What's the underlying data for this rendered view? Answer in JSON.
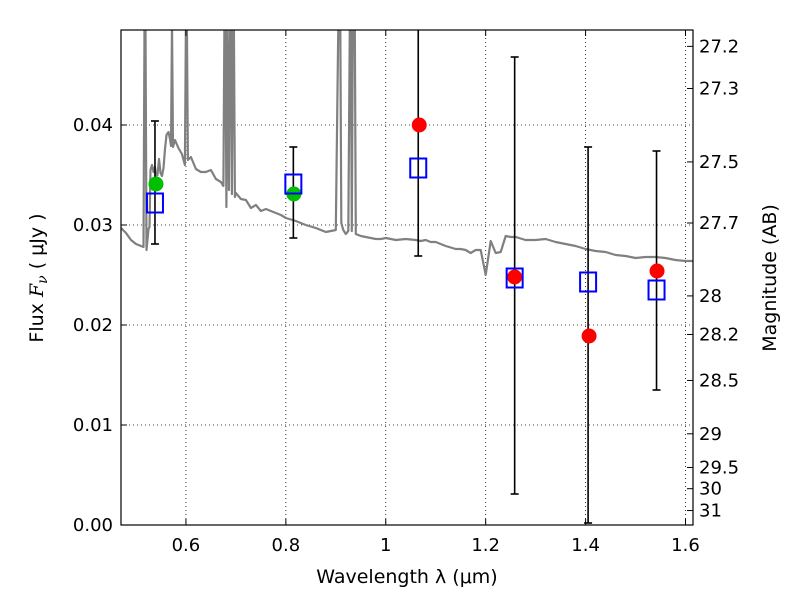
{
  "chart_data": {
    "type": "scatter",
    "xlabel": "Wavelength  λ (μm)",
    "ylabel_prefix": "Flux  ",
    "ylabel_symbol": "F",
    "ylabel_subscript": "ν",
    "ylabel_units": "  ( μJy )",
    "y2label": "Magnitude (AB)",
    "xlim": [
      0.47,
      1.615
    ],
    "ylim": [
      0.0,
      0.0495
    ],
    "grid": true,
    "xticks": [
      {
        "value": 0.6,
        "label": "0.6"
      },
      {
        "value": 0.8,
        "label": "0.8"
      },
      {
        "value": 1.0,
        "label": "1"
      },
      {
        "value": 1.2,
        "label": "1.2"
      },
      {
        "value": 1.4,
        "label": "1.4"
      },
      {
        "value": 1.6,
        "label": "1.6"
      }
    ],
    "yticks": [
      {
        "value": 0.0,
        "label": "0.00"
      },
      {
        "value": 0.01,
        "label": "0.01"
      },
      {
        "value": 0.02,
        "label": "0.02"
      },
      {
        "value": 0.03,
        "label": "0.03"
      },
      {
        "value": 0.04,
        "label": "0.04"
      }
    ],
    "magnitude_ticks": [
      {
        "mag": 27.2,
        "label": "27.2"
      },
      {
        "mag": 27.3,
        "label": "27.3"
      },
      {
        "mag": 27.5,
        "label": "27.5"
      },
      {
        "mag": 27.7,
        "label": "27.7"
      },
      {
        "mag": 28.0,
        "label": "28"
      },
      {
        "mag": 28.2,
        "label": "28.2"
      },
      {
        "mag": 28.5,
        "label": "28.5"
      },
      {
        "mag": 29.0,
        "label": "29"
      },
      {
        "mag": 29.5,
        "label": "29.5"
      },
      {
        "mag": 30.0,
        "label": "30"
      },
      {
        "mag": 31.0,
        "label": "31"
      }
    ],
    "series": [
      {
        "name": "model-spectrum",
        "kind": "line",
        "color": "#808080",
        "x": [
          0.47,
          0.48,
          0.49,
          0.5,
          0.51,
          0.515,
          0.517,
          0.519,
          0.521,
          0.525,
          0.527,
          0.529,
          0.532,
          0.535,
          0.538,
          0.54,
          0.543,
          0.546,
          0.549,
          0.552,
          0.555,
          0.558,
          0.561,
          0.565,
          0.568,
          0.57,
          0.572,
          0.574,
          0.578,
          0.585,
          0.592,
          0.598,
          0.6,
          0.602,
          0.604,
          0.61,
          0.62,
          0.63,
          0.64,
          0.65,
          0.66,
          0.67,
          0.675,
          0.677,
          0.679,
          0.681,
          0.683,
          0.686,
          0.688,
          0.69,
          0.692,
          0.694,
          0.696,
          0.698,
          0.7,
          0.71,
          0.72,
          0.73,
          0.74,
          0.75,
          0.76,
          0.77,
          0.78,
          0.79,
          0.8,
          0.82,
          0.84,
          0.86,
          0.88,
          0.9,
          0.905,
          0.907,
          0.909,
          0.911,
          0.915,
          0.92,
          0.925,
          0.928,
          0.93,
          0.932,
          0.934,
          0.936,
          0.938,
          0.94,
          0.95,
          0.96,
          0.97,
          0.98,
          0.99,
          1.0,
          1.02,
          1.04,
          1.06,
          1.07,
          1.08,
          1.09,
          1.1,
          1.12,
          1.14,
          1.15,
          1.16,
          1.17,
          1.18,
          1.19,
          1.2,
          1.21,
          1.22,
          1.23,
          1.24,
          1.25,
          1.26,
          1.28,
          1.3,
          1.32,
          1.34,
          1.36,
          1.38,
          1.4,
          1.42,
          1.44,
          1.46,
          1.48,
          1.5,
          1.52,
          1.54,
          1.56,
          1.58,
          1.6,
          1.615
        ],
        "y": [
          0.0297,
          0.0292,
          0.0285,
          0.0281,
          0.0279,
          0.0278,
          0.05,
          0.05,
          0.0275,
          0.0296,
          0.0298,
          0.0355,
          0.036,
          0.0353,
          0.0358,
          0.0349,
          0.035,
          0.0366,
          0.0352,
          0.0349,
          0.0357,
          0.0376,
          0.039,
          0.0393,
          0.0386,
          0.0379,
          0.05,
          0.0378,
          0.0385,
          0.0377,
          0.0371,
          0.036,
          0.05,
          0.05,
          0.0365,
          0.0368,
          0.0356,
          0.0353,
          0.0353,
          0.0355,
          0.0346,
          0.0343,
          0.0339,
          0.05,
          0.05,
          0.0318,
          0.05,
          0.0335,
          0.05,
          0.05,
          0.0331,
          0.05,
          0.05,
          0.0328,
          0.0332,
          0.0326,
          0.0325,
          0.0317,
          0.032,
          0.0314,
          0.0316,
          0.0314,
          0.0312,
          0.031,
          0.0307,
          0.0304,
          0.03,
          0.0297,
          0.0293,
          0.0295,
          0.05,
          0.05,
          0.05,
          0.0302,
          0.0295,
          0.0291,
          0.0294,
          0.05,
          0.05,
          0.0294,
          0.05,
          0.05,
          0.05,
          0.0291,
          0.0289,
          0.0288,
          0.0287,
          0.0286,
          0.0286,
          0.0287,
          0.0285,
          0.0286,
          0.0285,
          0.0284,
          0.0285,
          0.0283,
          0.0283,
          0.0279,
          0.0276,
          0.0276,
          0.0275,
          0.0272,
          0.0275,
          0.0275,
          0.025,
          0.0284,
          0.0272,
          0.0273,
          0.0289,
          0.0288,
          0.0288,
          0.0285,
          0.0285,
          0.0286,
          0.0283,
          0.0281,
          0.0279,
          0.0276,
          0.0274,
          0.0273,
          0.027,
          0.0269,
          0.0267,
          0.0268,
          0.0268,
          0.0267,
          0.0265,
          0.0264,
          0.0264
        ]
      },
      {
        "name": "observed-red",
        "kind": "marker",
        "color": "#ff0000",
        "x": [
          1.067,
          1.258,
          1.407,
          1.543
        ],
        "y": [
          0.04,
          0.0248,
          0.0189,
          0.0254
        ]
      },
      {
        "name": "observed-green",
        "kind": "marker",
        "color": "#00bf00",
        "x": [
          0.54,
          0.816
        ],
        "y": [
          0.0341,
          0.0331
        ]
      },
      {
        "name": "model-photometry",
        "kind": "open-square",
        "color": "#0000ff",
        "x": [
          0.538,
          0.815,
          1.065,
          1.258,
          1.405,
          1.542
        ],
        "y": [
          0.0322,
          0.0341,
          0.0357,
          0.0247,
          0.0243,
          0.0235
        ]
      }
    ],
    "errorbars": [
      {
        "x": 0.538,
        "low": 0.0281,
        "high": 0.0404
      },
      {
        "x": 0.815,
        "low": 0.0287,
        "high": 0.0378
      },
      {
        "x": 1.065,
        "low": 0.0269,
        "high": 0.051
      },
      {
        "x": 1.258,
        "low": 0.0031,
        "high": 0.0468
      },
      {
        "x": 1.405,
        "low": 0.0002,
        "high": 0.0378
      },
      {
        "x": 1.542,
        "low": 0.0135,
        "high": 0.0374
      }
    ]
  }
}
